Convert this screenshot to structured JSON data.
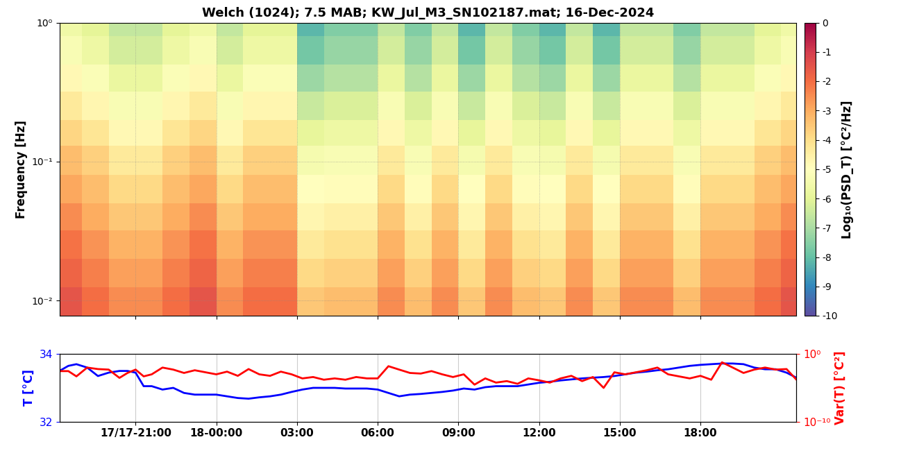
{
  "chart_data": [
    {
      "type": "heatmap",
      "title": "Welch (1024); 7.5 MAB; KW_Jul_M3_SN102187.mat; 16-Dec-2024",
      "y_label": "Frequency [Hz]",
      "log": "y",
      "grid": true,
      "tick_labels": "y",
      "color": "Spectral_r",
      "xlim": [
        18.17,
        45.57
      ],
      "xticks": [
        {
          "value": 21,
          "label": "17/17-21:00"
        },
        {
          "value": 24,
          "label": "18-00:00"
        },
        {
          "value": 27,
          "label": "03:00"
        },
        {
          "value": 30,
          "label": "06:00"
        },
        {
          "value": 33,
          "label": "09:00"
        },
        {
          "value": 36,
          "label": "12:00"
        },
        {
          "value": 39,
          "label": "15:00"
        },
        {
          "value": 42,
          "label": "18:00"
        }
      ],
      "ylim": [
        0.0078,
        1.0
      ],
      "yticks": [
        {
          "value": 0.01,
          "label": "10⁻²"
        },
        {
          "value": 0.1,
          "label": "10⁻¹"
        },
        {
          "value": 1,
          "label": "10⁰"
        }
      ],
      "time_edges": [
        18.17,
        19,
        20,
        21,
        22,
        23,
        24,
        25,
        26,
        27,
        28,
        29,
        30,
        31,
        32,
        33,
        34,
        35,
        36,
        37,
        38,
        39,
        40,
        41,
        42,
        43,
        44,
        45,
        45.57
      ],
      "freq_edges": [
        0.0078,
        0.0125,
        0.02,
        0.032,
        0.05,
        0.08,
        0.13,
        0.2,
        0.32,
        0.5,
        0.8,
        1.0
      ],
      "cells_by_time": [
        [
          -1.5,
          -1.8,
          -2.1,
          -2.5,
          -2.9,
          -3.3,
          -3.8,
          -4.3,
          -4.8,
          -5.3,
          -5.6
        ],
        [
          -2.0,
          -2.3,
          -2.6,
          -3.0,
          -3.3,
          -3.7,
          -4.2,
          -4.7,
          -5.2,
          -5.7,
          -6.0
        ],
        [
          -2.5,
          -2.8,
          -3.1,
          -3.5,
          -3.9,
          -4.3,
          -4.8,
          -5.3,
          -5.8,
          -6.3,
          -6.6
        ],
        [
          -2.5,
          -2.8,
          -3.1,
          -3.5,
          -3.9,
          -4.3,
          -4.8,
          -5.3,
          -5.8,
          -6.3,
          -6.6
        ],
        [
          -2.0,
          -2.3,
          -2.6,
          -3.0,
          -3.3,
          -3.7,
          -4.2,
          -4.7,
          -5.2,
          -5.7,
          -6.0
        ],
        [
          -1.5,
          -1.8,
          -2.1,
          -2.5,
          -2.9,
          -3.3,
          -3.8,
          -4.3,
          -4.8,
          -5.3,
          -5.6
        ],
        [
          -2.5,
          -2.8,
          -3.1,
          -3.5,
          -3.9,
          -4.3,
          -4.8,
          -5.3,
          -5.8,
          -6.3,
          -6.6
        ],
        [
          -2.0,
          -2.3,
          -2.6,
          -3.0,
          -3.3,
          -3.7,
          -4.2,
          -4.7,
          -5.2,
          -5.7,
          -6.0
        ],
        [
          -2.0,
          -2.3,
          -2.6,
          -3.0,
          -3.3,
          -3.7,
          -4.2,
          -4.7,
          -5.2,
          -5.7,
          -6.0
        ],
        [
          -3.5,
          -3.9,
          -4.3,
          -4.7,
          -5.0,
          -5.4,
          -5.9,
          -6.5,
          -7.2,
          -7.8,
          -8.2
        ],
        [
          -3.3,
          -3.7,
          -4.1,
          -4.5,
          -4.9,
          -5.3,
          -5.7,
          -6.2,
          -6.8,
          -7.3,
          -7.6
        ],
        [
          -3.3,
          -3.7,
          -4.1,
          -4.5,
          -4.9,
          -5.3,
          -5.7,
          -6.2,
          -6.8,
          -7.3,
          -7.6
        ],
        [
          -2.5,
          -2.8,
          -3.1,
          -3.5,
          -3.9,
          -4.3,
          -4.8,
          -5.3,
          -5.8,
          -6.3,
          -6.6
        ],
        [
          -3.3,
          -3.7,
          -4.1,
          -4.5,
          -4.9,
          -5.3,
          -5.7,
          -6.2,
          -6.8,
          -7.3,
          -7.6
        ],
        [
          -2.5,
          -2.8,
          -3.1,
          -3.5,
          -3.9,
          -4.3,
          -4.8,
          -5.3,
          -5.8,
          -6.3,
          -6.6
        ],
        [
          -3.5,
          -3.9,
          -4.3,
          -4.7,
          -5.0,
          -5.4,
          -5.9,
          -6.5,
          -7.2,
          -7.8,
          -8.2
        ],
        [
          -2.5,
          -2.8,
          -3.1,
          -3.5,
          -3.9,
          -4.3,
          -4.8,
          -5.3,
          -5.8,
          -6.3,
          -6.6
        ],
        [
          -3.3,
          -3.7,
          -4.1,
          -4.5,
          -4.9,
          -5.3,
          -5.7,
          -6.2,
          -6.8,
          -7.3,
          -7.6
        ],
        [
          -3.5,
          -3.9,
          -4.3,
          -4.7,
          -5.0,
          -5.4,
          -5.9,
          -6.5,
          -7.2,
          -7.8,
          -8.2
        ],
        [
          -2.5,
          -2.8,
          -3.1,
          -3.5,
          -3.9,
          -4.3,
          -4.8,
          -5.3,
          -5.8,
          -6.3,
          -6.6
        ],
        [
          -3.5,
          -3.9,
          -4.3,
          -4.7,
          -5.0,
          -5.4,
          -5.9,
          -6.5,
          -7.2,
          -7.8,
          -8.2
        ],
        [
          -2.5,
          -2.8,
          -3.1,
          -3.5,
          -3.9,
          -4.3,
          -4.8,
          -5.3,
          -5.8,
          -6.3,
          -6.6
        ],
        [
          -2.5,
          -2.8,
          -3.1,
          -3.5,
          -3.9,
          -4.3,
          -4.8,
          -5.3,
          -5.8,
          -6.3,
          -6.6
        ],
        [
          -3.3,
          -3.7,
          -4.1,
          -4.5,
          -4.9,
          -5.3,
          -5.7,
          -6.2,
          -6.8,
          -7.3,
          -7.6
        ],
        [
          -2.5,
          -2.8,
          -3.1,
          -3.5,
          -3.9,
          -4.3,
          -4.8,
          -5.3,
          -5.8,
          -6.3,
          -6.6
        ],
        [
          -2.5,
          -2.8,
          -3.1,
          -3.5,
          -3.9,
          -4.3,
          -4.8,
          -5.3,
          -5.8,
          -6.3,
          -6.6
        ],
        [
          -2.0,
          -2.3,
          -2.6,
          -3.0,
          -3.3,
          -3.7,
          -4.2,
          -4.7,
          -5.2,
          -5.7,
          -6.0
        ],
        [
          -1.5,
          -1.8,
          -2.1,
          -2.5,
          -2.9,
          -3.3,
          -3.8,
          -4.3,
          -4.8,
          -5.3,
          -5.6
        ]
      ],
      "colorbar_label": "Log₁₀(PSD_T) [°C²/Hz]",
      "colorbar_range": [
        -10,
        0
      ],
      "colorbar_ticks": [
        0,
        -1,
        -2,
        -3,
        -4,
        -5,
        -6,
        -7,
        -8,
        -9,
        -10
      ]
    },
    {
      "type": "line",
      "grid": true,
      "y_label": "T [°C]",
      "y2_label": "Var(T) [°C²]",
      "xlim": [
        18.17,
        45.57
      ],
      "xticks": [
        {
          "value": 21,
          "label": "17/17-21:00"
        },
        {
          "value": 24,
          "label": "18-00:00"
        },
        {
          "value": 27,
          "label": "03:00"
        },
        {
          "value": 30,
          "label": "06:00"
        },
        {
          "value": 33,
          "label": "09:00"
        },
        {
          "value": 36,
          "label": "12:00"
        },
        {
          "value": 39,
          "label": "15:00"
        },
        {
          "value": 42,
          "label": "18:00"
        }
      ],
      "ylim": [
        32,
        34
      ],
      "yticks": [
        32,
        34
      ],
      "y2lim": [
        1e-10,
        1
      ],
      "y2ticks": [
        {
          "value": 1e-10,
          "label": "10⁻¹⁰"
        },
        {
          "value": 1,
          "label": "10⁰"
        }
      ],
      "x": [
        18.17,
        18.5,
        18.8,
        19.2,
        19.6,
        20.0,
        20.4,
        20.7,
        21.0,
        21.3,
        21.6,
        22.0,
        22.4,
        22.8,
        23.2,
        23.6,
        24.0,
        24.4,
        24.8,
        25.2,
        25.6,
        26.0,
        26.4,
        26.8,
        27.2,
        27.6,
        28.0,
        28.4,
        28.8,
        29.2,
        29.6,
        30.0,
        30.4,
        30.8,
        31.2,
        31.6,
        32.0,
        32.4,
        32.8,
        33.2,
        33.6,
        34.0,
        34.4,
        34.8,
        35.2,
        35.6,
        36.0,
        36.4,
        36.8,
        37.2,
        37.6,
        38.0,
        38.4,
        38.8,
        39.2,
        39.6,
        40.0,
        40.4,
        40.8,
        41.2,
        41.6,
        42.0,
        42.4,
        42.8,
        43.2,
        43.6,
        44.0,
        44.4,
        44.8,
        45.2,
        45.57
      ],
      "series": [
        {
          "color": "#0000ff",
          "values": [
            33.5,
            33.65,
            33.7,
            33.6,
            33.35,
            33.45,
            33.5,
            33.5,
            33.45,
            33.05,
            33.05,
            32.95,
            33.0,
            32.85,
            32.8,
            32.8,
            32.8,
            32.75,
            32.7,
            32.68,
            32.72,
            32.75,
            32.8,
            32.88,
            32.95,
            33.0,
            33.0,
            33.0,
            32.98,
            32.98,
            32.98,
            32.95,
            32.85,
            32.75,
            32.8,
            32.82,
            32.85,
            32.88,
            32.92,
            32.98,
            32.95,
            33.02,
            33.05,
            33.05,
            33.05,
            33.1,
            33.15,
            33.18,
            33.22,
            33.25,
            33.28,
            33.3,
            33.32,
            33.35,
            33.4,
            33.45,
            33.48,
            33.52,
            33.55,
            33.6,
            33.65,
            33.68,
            33.7,
            33.72,
            33.72,
            33.7,
            33.6,
            33.55,
            33.55,
            33.45,
            33.3
          ]
        },
        {
          "color": "#ff0000",
          "axis": "y2",
          "log": "y",
          "values": [
            0.003,
            0.003,
            0.0005,
            0.01,
            0.006,
            0.005,
            0.0003,
            0.0016,
            0.005,
            0.0005,
            0.001,
            0.01,
            0.005,
            0.0016,
            0.004,
            0.002,
            0.001,
            0.0025,
            0.0006,
            0.006,
            0.001,
            0.0006,
            0.0025,
            0.001,
            0.00025,
            0.0004,
            0.00016,
            0.00025,
            0.00016,
            0.0004,
            0.00025,
            0.00025,
            0.016,
            0.005,
            0.0016,
            0.0013,
            0.003,
            0.001,
            0.0004,
            0.001,
            3e-05,
            0.00025,
            6e-05,
            0.0001,
            4e-05,
            0.00025,
            0.00013,
            6e-05,
            0.00025,
            0.0006,
            0.0001,
            0.0004,
            1e-05,
            0.002,
            0.001,
            0.002,
            0.004,
            0.01,
            0.001,
            0.0005,
            0.00025,
            0.0006,
            0.00016,
            0.06,
            0.01,
            0.0016,
            0.005,
            0.01,
            0.005,
            0.006,
            0.00016
          ]
        }
      ]
    }
  ]
}
